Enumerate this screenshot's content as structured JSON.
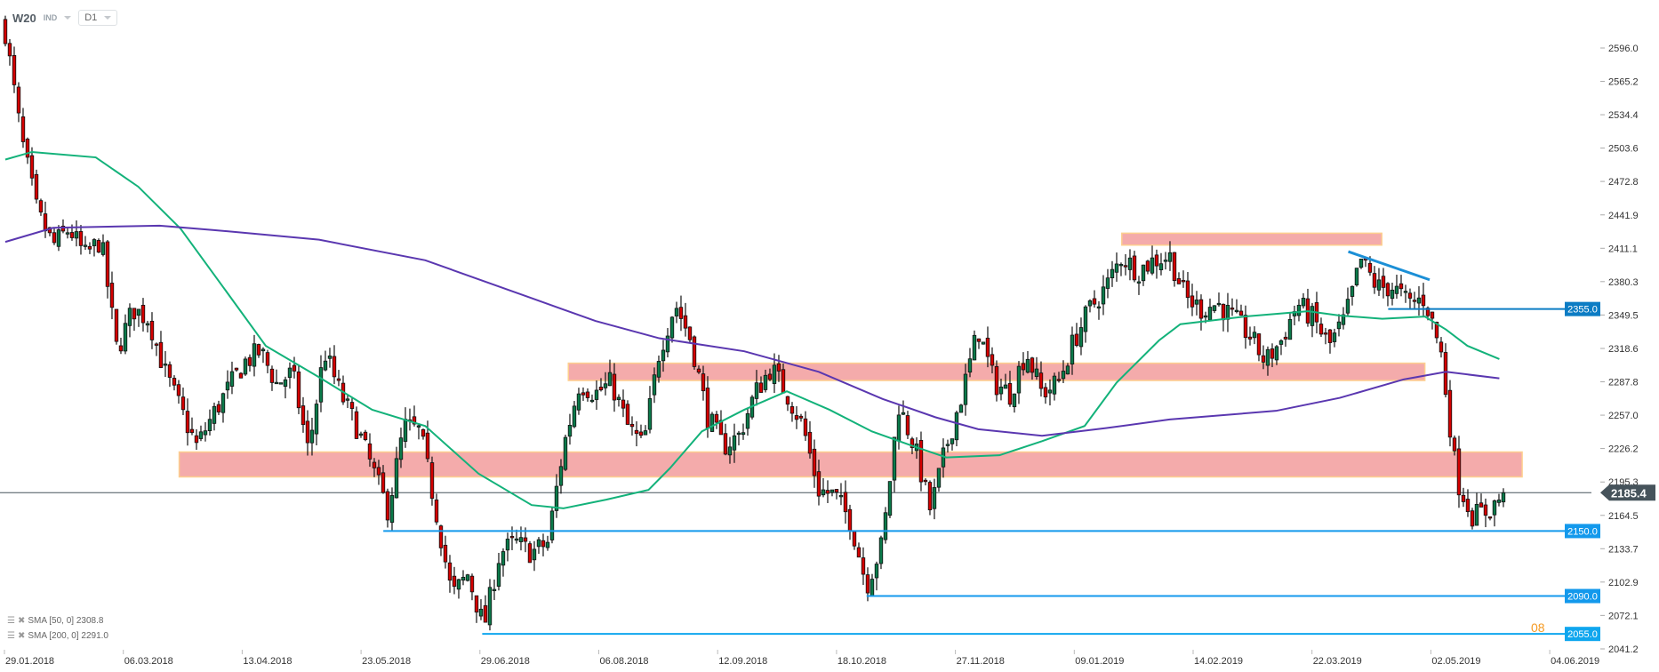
{
  "header": {
    "symbol": "W20",
    "type": "IND",
    "timeframe": "D1"
  },
  "chart_data": {
    "type": "candlestick",
    "title": "W20",
    "ylim": [
      2041.2,
      2596.0
    ],
    "y_ticks": [
      "2596.0",
      "2565.2",
      "2534.4",
      "2503.6",
      "2472.8",
      "2441.9",
      "2411.1",
      "2380.3",
      "2349.5",
      "2318.6",
      "2287.8",
      "2257.0",
      "2226.2",
      "2195.3",
      "2164.5",
      "2133.7",
      "2102.9",
      "2072.1",
      "2041.2"
    ],
    "x_ticks": [
      "29.01.2018",
      "06.03.2018",
      "13.04.2018",
      "23.05.2018",
      "29.06.2018",
      "06.08.2018",
      "12.09.2018",
      "18.10.2018",
      "27.11.2018",
      "09.01.2019",
      "14.02.2019",
      "22.03.2019",
      "02.05.2019",
      "04.06.2019"
    ],
    "close_path": [
      2611,
      2513,
      2444,
      2414,
      2429,
      2404,
      2419,
      2316,
      2355,
      2346,
      2297,
      2262,
      2228,
      2257,
      2282,
      2306,
      2316,
      2286,
      2296,
      2223,
      2316,
      2277,
      2247,
      2208,
      2169,
      2247,
      2242,
      2169,
      2090,
      2110,
      2061,
      2130,
      2139,
      2130,
      2139,
      2228,
      2287,
      2277,
      2287,
      2247,
      2228,
      2316,
      2360,
      2326,
      2257,
      2228,
      2238,
      2277,
      2301,
      2277,
      2247,
      2188,
      2183,
      2159,
      2100,
      2139,
      2267,
      2228,
      2169,
      2228,
      2277,
      2336,
      2287,
      2277,
      2316,
      2277,
      2287,
      2326,
      2355,
      2375,
      2404,
      2390,
      2400,
      2404,
      2365,
      2355,
      2360,
      2346,
      2331,
      2306,
      2326,
      2360,
      2346,
      2321,
      2346,
      2400,
      2375,
      2375,
      2360,
      2365,
      2316,
      2198,
      2164,
      2169,
      2185.4
    ],
    "sma50": {
      "label": "SMA [50, 0] 2308.8",
      "color": "#13b27a",
      "points": [
        [
          0,
          2493
        ],
        [
          1.67,
          2500
        ],
        [
          5.67,
          2495
        ],
        [
          8.33,
          2468
        ],
        [
          11,
          2429
        ],
        [
          13.67,
          2375
        ],
        [
          16.33,
          2321
        ],
        [
          19.67,
          2292
        ],
        [
          23,
          2262
        ],
        [
          26.33,
          2247
        ],
        [
          29.67,
          2203
        ],
        [
          33,
          2174
        ],
        [
          35,
          2171
        ],
        [
          37.67,
          2179
        ],
        [
          40.33,
          2188
        ],
        [
          41.67,
          2208
        ],
        [
          43.67,
          2242
        ],
        [
          46.33,
          2262
        ],
        [
          49,
          2279
        ],
        [
          51.67,
          2262
        ],
        [
          54.33,
          2242
        ],
        [
          57,
          2228
        ],
        [
          59,
          2218
        ],
        [
          62.33,
          2220
        ],
        [
          65,
          2233
        ],
        [
          67.67,
          2247
        ],
        [
          69.67,
          2287
        ],
        [
          72.33,
          2326
        ],
        [
          73.67,
          2341
        ],
        [
          77.67,
          2348
        ],
        [
          81.67,
          2353
        ],
        [
          83.67,
          2349
        ],
        [
          86.33,
          2346
        ],
        [
          89,
          2348
        ],
        [
          90.33,
          2336
        ],
        [
          91.67,
          2321
        ],
        [
          93.67,
          2308.8
        ]
      ]
    },
    "sma200": {
      "label": "SMA [200, 0] 2291.0",
      "color": "#5a37b0",
      "points": [
        [
          0,
          2417
        ],
        [
          3,
          2430
        ],
        [
          9.67,
          2432
        ],
        [
          13,
          2428
        ],
        [
          19.67,
          2419
        ],
        [
          26.33,
          2400
        ],
        [
          33,
          2365
        ],
        [
          37,
          2344
        ],
        [
          41,
          2328
        ],
        [
          46.33,
          2316
        ],
        [
          51,
          2297
        ],
        [
          55,
          2272
        ],
        [
          58.33,
          2255
        ],
        [
          61,
          2244
        ],
        [
          65,
          2238
        ],
        [
          69,
          2245
        ],
        [
          73,
          2253
        ],
        [
          79.67,
          2261
        ],
        [
          83.67,
          2273
        ],
        [
          87.67,
          2290
        ],
        [
          90.33,
          2297
        ],
        [
          93.67,
          2291
        ]
      ]
    },
    "zones": [
      {
        "from": 70,
        "to": 86.3,
        "low": 2414,
        "high": 2425
      },
      {
        "from": 35.3,
        "to": 89,
        "low": 2289,
        "high": 2305
      },
      {
        "from": 10.9,
        "to": 95.1,
        "low": 2200,
        "high": 2223
      }
    ],
    "levels": [
      {
        "value": 2355.0,
        "label": "2355.0",
        "from": 86.7,
        "color": "#0b7cc4"
      },
      {
        "value": 2150.0,
        "label": "2150.0",
        "from": 23.7,
        "color": "#1399ec"
      },
      {
        "value": 2090.0,
        "label": "2090.0",
        "from": 54,
        "color": "#1399ec"
      },
      {
        "value": 2055.0,
        "label": "2055.0",
        "from": 29.9,
        "color": "#0fa6ee"
      }
    ],
    "trendline": [
      [
        84.2,
        2408
      ],
      [
        89.3,
        2382
      ]
    ],
    "current_price": {
      "value": 2185.4,
      "label": "2185.4"
    },
    "timer_text": "08",
    "colors": {
      "up": "#0b7a4a",
      "down": "#d40000",
      "zone": "#f4abab",
      "zone_border": "#fdcf8f",
      "trend": "#1b8fd6"
    }
  }
}
